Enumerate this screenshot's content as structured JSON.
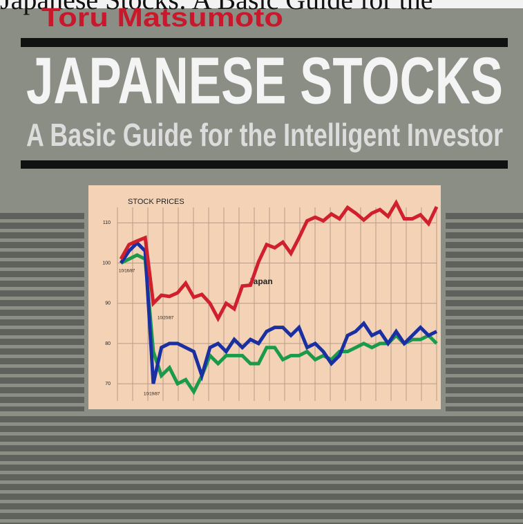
{
  "cover": {
    "cropped_title": "Japanese Stocks: A Basic Guide for the",
    "author": "Toru Matsumoto",
    "title": "JAPANESE STOCKS",
    "subtitle": "A Basic Guide for the Intelligent Investor"
  },
  "chart_data": {
    "type": "line",
    "title": "STOCK PRICES",
    "annotation": "Japan",
    "date_labels": [
      "10/16/87",
      "10/20/87",
      "10/19/87"
    ],
    "ylim": [
      64,
      119
    ],
    "yticks": [
      70,
      80,
      90,
      100,
      110
    ],
    "grid": true,
    "series": [
      {
        "color": "#d0202e",
        "values": [
          101,
          104.6,
          105.5,
          106.3,
          90,
          92,
          91.7,
          92.6,
          95,
          91.5,
          92.2,
          90,
          86.2,
          90,
          88.6,
          94.3,
          94.5,
          100.3,
          104.6,
          103.8,
          105.2,
          102.4,
          106.3,
          110.5,
          111.4,
          110.5,
          112.2,
          111,
          113.8,
          112.4,
          110.7,
          112.4,
          113.3,
          111.6,
          115,
          111,
          111,
          112,
          109.8,
          114
        ]
      },
      {
        "color": "#1a2fa0",
        "values": [
          100,
          103,
          105,
          103,
          70,
          79,
          80,
          80,
          79,
          78,
          72,
          79,
          80,
          78,
          81,
          79,
          81,
          80,
          83,
          84,
          84,
          82,
          84,
          79,
          80,
          78,
          75,
          77,
          82,
          83,
          85,
          82,
          83,
          80,
          83,
          80,
          82,
          84,
          82,
          83
        ]
      },
      {
        "color": "#1a9a4a",
        "values": [
          100,
          101,
          102,
          101,
          78,
          72,
          74,
          70,
          71,
          68,
          72,
          77,
          75,
          77,
          77,
          77,
          75,
          75,
          79,
          79,
          76,
          77,
          77,
          78,
          76,
          77,
          76,
          78,
          78,
          79,
          80,
          79,
          80,
          80,
          82,
          80,
          81,
          81,
          82,
          80
        ]
      }
    ]
  }
}
